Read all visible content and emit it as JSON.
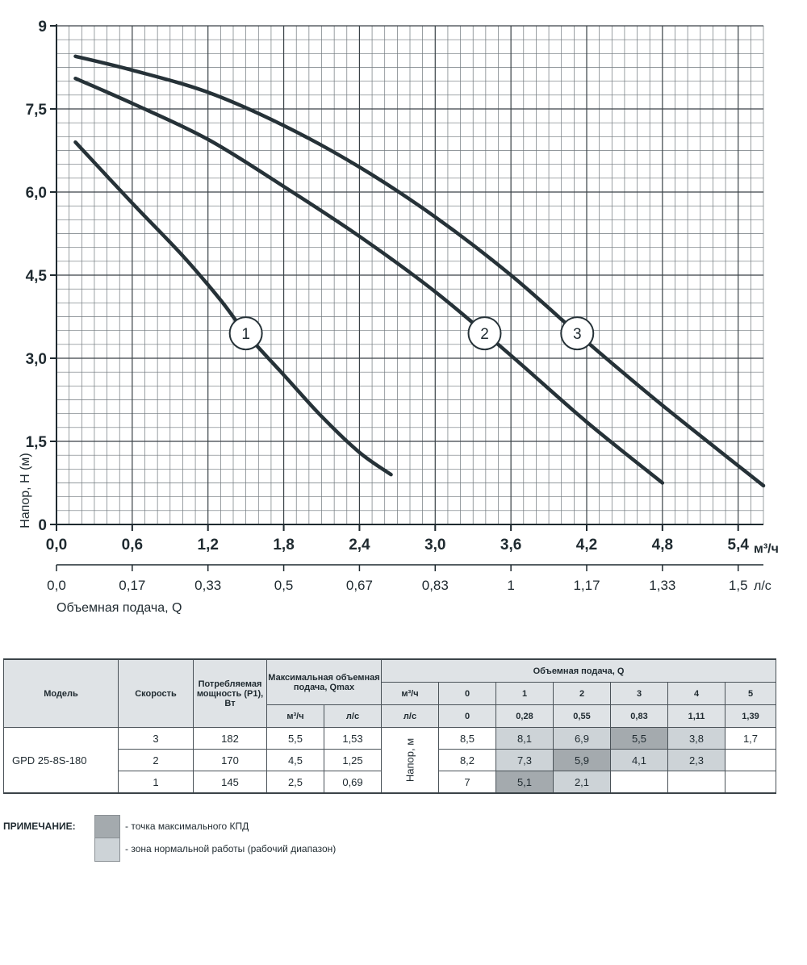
{
  "chart_data": {
    "type": "line",
    "ylabel": "Напор, H (м)",
    "xlabel": "Объемная подача, Q",
    "x_unit": "м³/ч",
    "x2_unit": "л/с",
    "ylim": [
      0,
      9
    ],
    "xlim": [
      0,
      5.6
    ],
    "grid": true,
    "y_ticks": [
      "0",
      "1,5",
      "3,0",
      "4,5",
      "6,0",
      "7,5",
      "9"
    ],
    "x_ticks": [
      "0,0",
      "0,6",
      "1,2",
      "1,8",
      "2,4",
      "3,0",
      "3,6",
      "4,2",
      "4,8",
      "5,4"
    ],
    "x2_ticks": [
      "0,0",
      "0,17",
      "0,33",
      "0,5",
      "0,67",
      "0,83",
      "1",
      "1,17",
      "1,33",
      "1,5"
    ],
    "series": [
      {
        "name": "1",
        "points": [
          [
            0.15,
            6.9
          ],
          [
            0.6,
            5.8
          ],
          [
            1.0,
            4.85
          ],
          [
            1.3,
            4.05
          ],
          [
            1.5,
            3.45
          ],
          [
            1.8,
            2.7
          ],
          [
            2.1,
            1.95
          ],
          [
            2.4,
            1.3
          ],
          [
            2.65,
            0.9
          ]
        ]
      },
      {
        "name": "2",
        "points": [
          [
            0.15,
            8.05
          ],
          [
            0.6,
            7.6
          ],
          [
            1.2,
            6.95
          ],
          [
            1.8,
            6.1
          ],
          [
            2.4,
            5.2
          ],
          [
            3.0,
            4.2
          ],
          [
            3.6,
            3.05
          ],
          [
            4.2,
            1.85
          ],
          [
            4.8,
            0.75
          ]
        ]
      },
      {
        "name": "3",
        "points": [
          [
            0.15,
            8.45
          ],
          [
            0.6,
            8.2
          ],
          [
            1.2,
            7.8
          ],
          [
            1.8,
            7.2
          ],
          [
            2.4,
            6.45
          ],
          [
            3.0,
            5.55
          ],
          [
            3.6,
            4.5
          ],
          [
            4.2,
            3.3
          ],
          [
            4.8,
            2.15
          ],
          [
            5.6,
            0.7
          ]
        ]
      }
    ]
  },
  "table": {
    "headers": {
      "model": "Модель",
      "speed": "Скорость",
      "power": "Потребляемая мощность (P1), Вт",
      "qmax": "Максимальная объемная подача, Qmax",
      "qmax_m3h": "м³/ч",
      "qmax_ls": "л/с",
      "flow": "Объемная подача, Q",
      "flow_unit_m3h": "м³/ч",
      "flow_unit_ls": "л/с",
      "head_label": "Напор, м"
    },
    "flow_m3h": [
      "0",
      "1",
      "2",
      "3",
      "4",
      "5"
    ],
    "flow_ls": [
      "0",
      "0,28",
      "0,55",
      "0,83",
      "1,11",
      "1,39"
    ],
    "model": "GPD 25-8S-180",
    "rows": [
      {
        "speed": "3",
        "power": "182",
        "qmax_m3h": "5,5",
        "qmax_ls": "1,53",
        "head": [
          "8,5",
          "8,1",
          "6,9",
          "5,5",
          "3,8",
          "1,7"
        ],
        "shade": [
          "",
          "zone",
          "zone",
          "max",
          "zone",
          ""
        ]
      },
      {
        "speed": "2",
        "power": "170",
        "qmax_m3h": "4,5",
        "qmax_ls": "1,25",
        "head": [
          "8,2",
          "7,3",
          "5,9",
          "4,1",
          "2,3",
          ""
        ],
        "shade": [
          "",
          "zone",
          "max",
          "zone",
          "zone",
          ""
        ]
      },
      {
        "speed": "1",
        "power": "145",
        "qmax_m3h": "2,5",
        "qmax_ls": "0,69",
        "head": [
          "7",
          "5,1",
          "2,1",
          "",
          "",
          ""
        ],
        "shade": [
          "",
          "max",
          "zone",
          "",
          "",
          ""
        ]
      }
    ]
  },
  "note": {
    "title": "ПРИМЕЧАНИЕ:",
    "max_label": "- точка максимального КПД",
    "zone_label": "- зона нормальной работы (рабочий диапазон)",
    "max_color": "#a4aaae",
    "zone_color": "#cdd3d7"
  }
}
